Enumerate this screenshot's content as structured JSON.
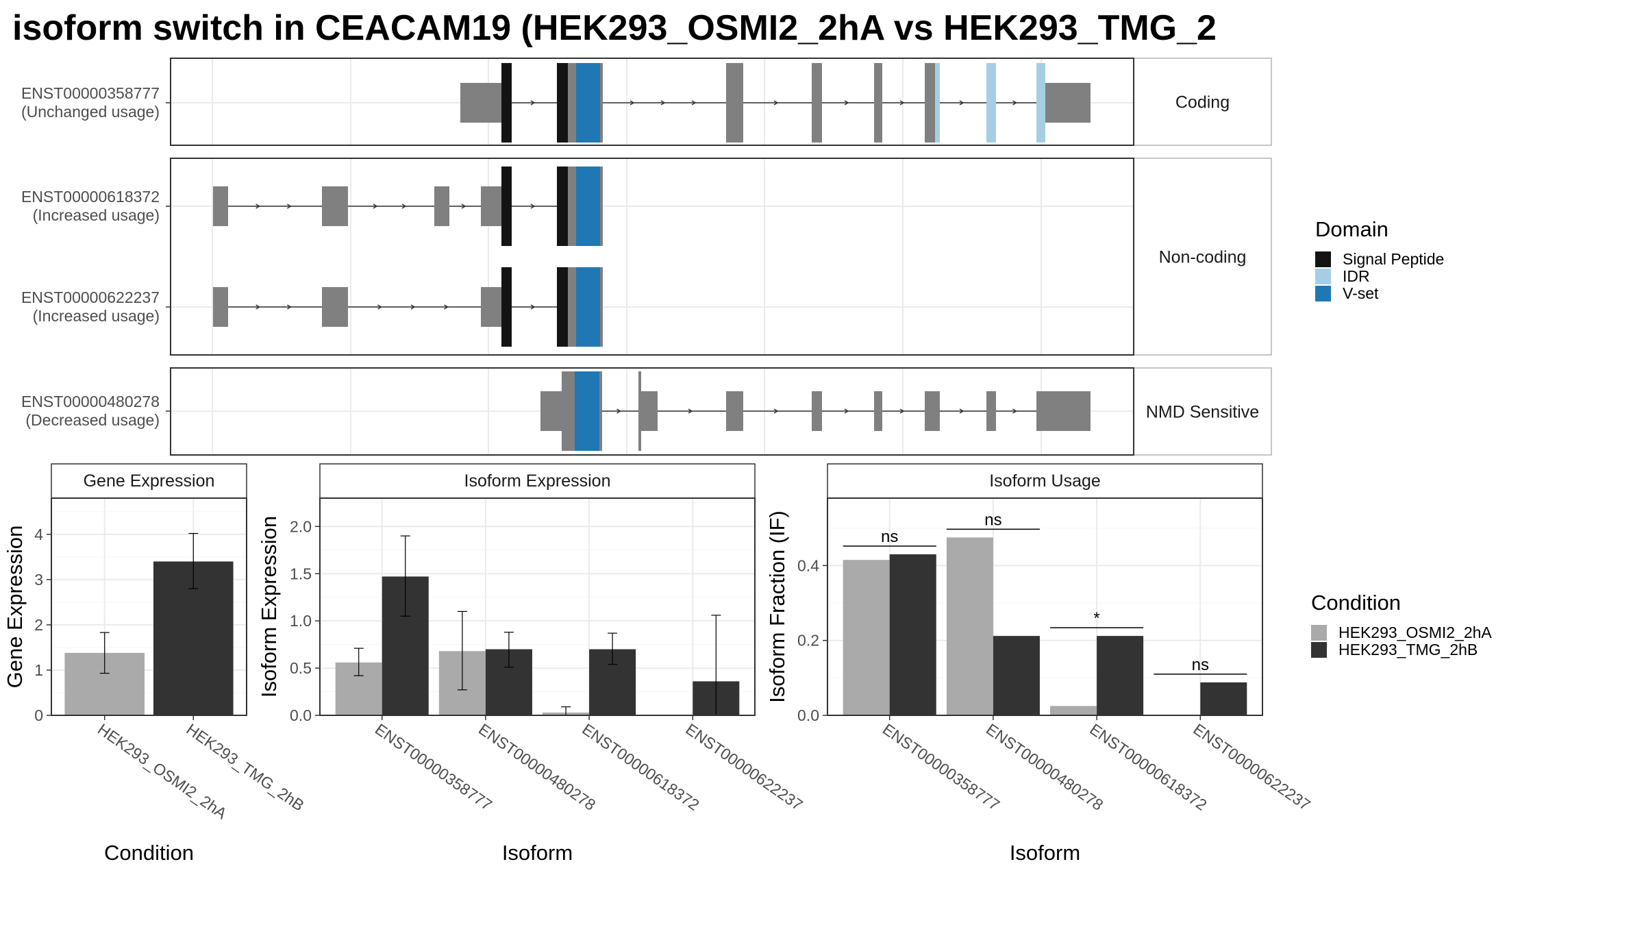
{
  "title": "isoform switch in CEACAM19 (HEK293_OSMI2_2hA vs HEK293_TMG_2",
  "colors": {
    "signal_peptide": "#141414",
    "idr": "#a6cee3",
    "v_set": "#1f78b4",
    "exon": "#808080",
    "condition_a": "#aaaaaa",
    "condition_b": "#333333"
  },
  "transcripts": [
    {
      "id": "ENST00000358777",
      "usage": "(Unchanged usage)",
      "group": "Coding"
    },
    {
      "id": "ENST00000618372",
      "usage": "(Increased usage)",
      "group": "Non-coding"
    },
    {
      "id": "ENST00000622237",
      "usage": "(Increased usage)",
      "group": "Non-coding"
    },
    {
      "id": "ENST00000480278",
      "usage": "(Decreased usage)",
      "group": "NMD Sensitive"
    }
  ],
  "facets": [
    "Coding",
    "Non-coding",
    "NMD Sensitive"
  ],
  "domain_legend": {
    "title": "Domain",
    "items": [
      {
        "label": "Signal Peptide",
        "color": "#141414"
      },
      {
        "label": "IDR",
        "color": "#a6cee3"
      },
      {
        "label": "V-set",
        "color": "#1f78b4"
      }
    ]
  },
  "condition_legend": {
    "title": "Condition",
    "items": [
      {
        "label": "HEK293_OSMI2_2hA",
        "color": "#aaaaaa"
      },
      {
        "label": "HEK293_TMG_2hB",
        "color": "#333333"
      }
    ]
  },
  "chart_data": [
    {
      "type": "bar",
      "title": "Gene Expression",
      "xlabel": "Condition",
      "ylabel": "Gene Expression",
      "ylim": [
        0,
        4.8
      ],
      "yticks": [
        0,
        1,
        2,
        3,
        4
      ],
      "categories": [
        "HEK293_OSMI2_2hA",
        "HEK293_TMG_2hB"
      ],
      "values": [
        1.38,
        3.4
      ],
      "err_low": [
        0.93,
        2.8
      ],
      "err_high": [
        1.83,
        4.02
      ]
    },
    {
      "type": "bar",
      "title": "Isoform Expression",
      "xlabel": "Isoform",
      "ylabel": "Isoform Expression",
      "ylim": [
        0,
        2.3
      ],
      "yticks": [
        "0.0",
        "0.5",
        "1.0",
        "1.5",
        "2.0"
      ],
      "categories": [
        "ENST00000358777",
        "ENST00000480278",
        "ENST00000618372",
        "ENST00000622237"
      ],
      "series": [
        {
          "name": "HEK293_OSMI2_2hA",
          "values": [
            0.56,
            0.68,
            0.03,
            0.0
          ],
          "err_low": [
            0.42,
            0.27,
            0.0,
            0.0
          ],
          "err_high": [
            0.71,
            1.1,
            0.09,
            0.0
          ]
        },
        {
          "name": "HEK293_TMG_2hB",
          "values": [
            1.47,
            0.7,
            0.7,
            0.36
          ],
          "err_low": [
            1.05,
            0.51,
            0.54,
            0.0
          ],
          "err_high": [
            1.9,
            0.88,
            0.87,
            1.06
          ]
        }
      ]
    },
    {
      "type": "bar",
      "title": "Isoform Usage",
      "xlabel": "Isoform",
      "ylabel": "Isoform Fraction (IF)",
      "ylim": [
        0,
        0.58
      ],
      "yticks": [
        "0.0",
        "0.2",
        "0.4"
      ],
      "categories": [
        "ENST00000358777",
        "ENST00000480278",
        "ENST00000618372",
        "ENST00000622237"
      ],
      "series": [
        {
          "name": "HEK293_OSMI2_2hA",
          "values": [
            0.415,
            0.475,
            0.025,
            0.0
          ]
        },
        {
          "name": "HEK293_TMG_2hB",
          "values": [
            0.43,
            0.212,
            0.212,
            0.088
          ]
        }
      ],
      "significance": [
        "ns",
        "ns",
        "*",
        "ns"
      ]
    }
  ]
}
